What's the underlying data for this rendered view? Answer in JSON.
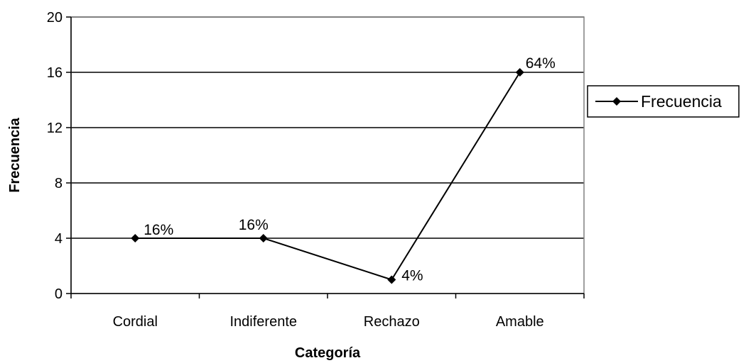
{
  "chart_data": {
    "type": "line",
    "categories": [
      "Cordial",
      "Indiferente",
      "Rechazo",
      "Amable"
    ],
    "series": [
      {
        "name": "Frecuencia",
        "values": [
          4,
          4,
          1,
          16
        ],
        "labels": [
          "16%",
          "16%",
          "4%",
          "64%"
        ],
        "color": "#000000",
        "marker": "diamond"
      }
    ],
    "title": "",
    "xlabel": "Categoría",
    "ylabel": "Frecuencia",
    "ylim": [
      0,
      20
    ],
    "yticks": [
      0,
      4,
      8,
      12,
      16,
      20
    ],
    "grid": true,
    "legend": "right"
  }
}
